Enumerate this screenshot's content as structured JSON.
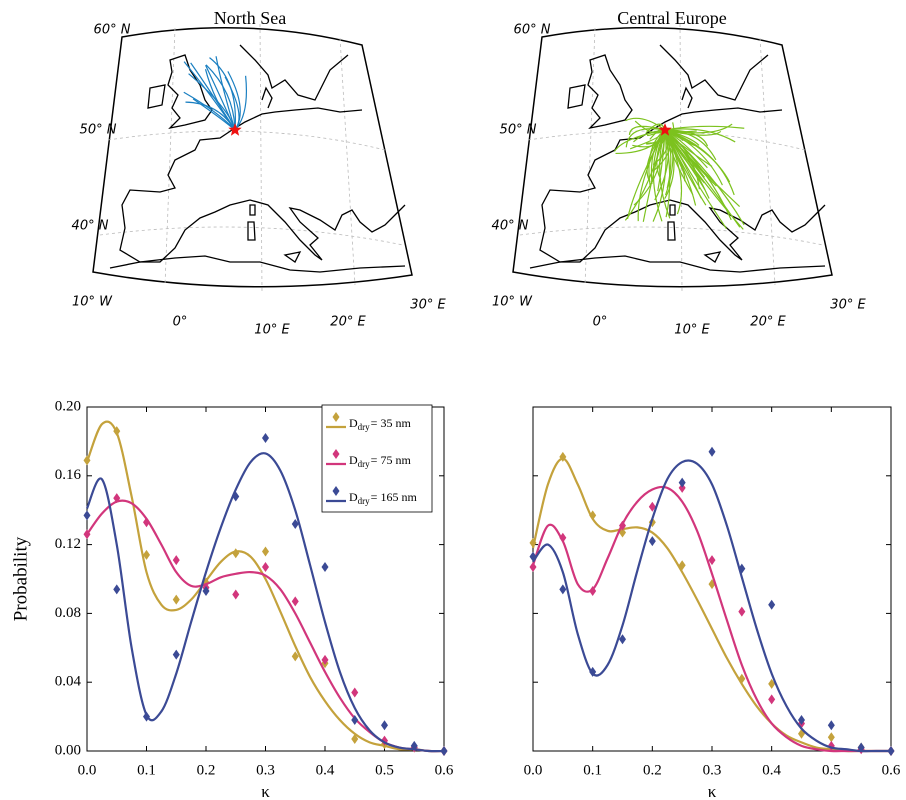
{
  "maps": [
    {
      "title": "North Sea",
      "lat_labels": [
        "60° N",
        "50° N",
        "40° N"
      ],
      "lon_labels": [
        "10° W",
        "0°",
        "10° E",
        "20° E",
        "30° E"
      ]
    },
    {
      "title": "Central Europe",
      "lat_labels": [
        "60° N",
        "50° N",
        "40° N"
      ],
      "lon_labels": [
        "10° W",
        "0°",
        "10° E",
        "20° E",
        "30° E"
      ]
    }
  ],
  "chart_data": [
    {
      "type": "line",
      "xlabel": "κ",
      "ylabel": "Probability",
      "xlim": [
        0,
        0.6
      ],
      "ylim": [
        0,
        0.2
      ],
      "xticks": [
        {
          "value": 0,
          "label": "0.0"
        },
        0.1,
        0.2,
        0.3,
        0.4,
        0.5,
        0.6
      ],
      "yticks": [
        {
          "value": 0,
          "label": "0.00"
        },
        {
          "value": 0.04,
          "label": "0.04"
        },
        {
          "value": 0.08,
          "label": "0.08"
        },
        {
          "value": 0.12,
          "label": "0.12"
        },
        {
          "value": 0.16,
          "label": "0.16"
        },
        {
          "value": 0.2,
          "label": "0.20"
        }
      ],
      "legend": "upper right",
      "x": [
        0,
        0.05,
        0.1,
        0.15,
        0.2,
        0.25,
        0.3,
        0.35,
        0.4,
        0.45,
        0.5,
        0.55,
        0.6
      ],
      "fit_x": [
        0,
        0.025,
        0.05,
        0.075,
        0.1,
        0.125,
        0.15,
        0.175,
        0.2,
        0.225,
        0.25,
        0.275,
        0.3,
        0.325,
        0.35,
        0.375,
        0.4,
        0.425,
        0.45,
        0.475,
        0.5,
        0.525,
        0.55,
        0.575,
        0.6
      ],
      "series": [
        {
          "name": {
            "main": "D",
            "sub": "dry",
            "tail": "= 35 nm"
          },
          "color": "#c4a23c",
          "values": [
            0.169,
            0.186,
            0.114,
            0.088,
            0.098,
            0.115,
            0.116,
            0.055,
            0.051,
            0.007,
            0.004,
            0.002,
            0
          ],
          "fit": [
            0.168,
            0.19,
            0.185,
            0.148,
            0.104,
            0.085,
            0.082,
            0.088,
            0.099,
            0.11,
            0.116,
            0.113,
            0.1,
            0.081,
            0.061,
            0.043,
            0.029,
            0.018,
            0.01,
            0.005,
            0.003,
            0.001,
            0.001,
            0,
            0
          ]
        },
        {
          "name": {
            "main": "D",
            "sub": "dry",
            "tail": "= 75 nm"
          },
          "color": "#d2367c",
          "values": [
            0.126,
            0.147,
            0.133,
            0.111,
            0.095,
            0.091,
            0.107,
            0.087,
            0.053,
            0.034,
            0.006,
            0.002,
            0
          ],
          "fit": [
            0.126,
            0.138,
            0.145,
            0.144,
            0.135,
            0.12,
            0.104,
            0.096,
            0.097,
            0.101,
            0.103,
            0.104,
            0.102,
            0.094,
            0.08,
            0.063,
            0.046,
            0.031,
            0.019,
            0.011,
            0.005,
            0.002,
            0.001,
            0,
            0
          ]
        },
        {
          "name": {
            "main": "D",
            "sub": "dry",
            "tail": "= 165 nm"
          },
          "color": "#3b4a95",
          "values": [
            0.137,
            0.094,
            0.02,
            0.056,
            0.093,
            0.148,
            0.182,
            0.132,
            0.107,
            0.018,
            0.015,
            0.003,
            0
          ],
          "fit": [
            0.141,
            0.158,
            0.12,
            0.06,
            0.021,
            0.023,
            0.045,
            0.075,
            0.104,
            0.13,
            0.152,
            0.168,
            0.173,
            0.163,
            0.14,
            0.108,
            0.075,
            0.046,
            0.025,
            0.012,
            0.005,
            0.002,
            0.001,
            0,
            0
          ]
        }
      ]
    },
    {
      "type": "line",
      "xlabel": "κ",
      "xlim": [
        0,
        0.6
      ],
      "ylim": [
        0,
        0.2
      ],
      "xticks": [
        {
          "value": 0,
          "label": "0.0"
        },
        0.1,
        0.2,
        0.3,
        0.4,
        0.5,
        0.6
      ],
      "yticks": [
        0,
        0.04,
        0.08,
        0.12,
        0.16,
        0.2
      ],
      "ytick_labels": false,
      "x": [
        0,
        0.05,
        0.1,
        0.15,
        0.2,
        0.25,
        0.3,
        0.35,
        0.4,
        0.45,
        0.5,
        0.55,
        0.6
      ],
      "fit_x": [
        0,
        0.025,
        0.05,
        0.075,
        0.1,
        0.125,
        0.15,
        0.175,
        0.2,
        0.225,
        0.25,
        0.275,
        0.3,
        0.325,
        0.35,
        0.375,
        0.4,
        0.425,
        0.45,
        0.475,
        0.5,
        0.525,
        0.55,
        0.575,
        0.6
      ],
      "series": [
        {
          "color": "#c4a23c",
          "values": [
            0.121,
            0.171,
            0.137,
            0.127,
            0.133,
            0.108,
            0.097,
            0.042,
            0.039,
            0.01,
            0.008,
            0.002,
            0
          ],
          "fit": [
            0.118,
            0.155,
            0.17,
            0.155,
            0.135,
            0.128,
            0.129,
            0.13,
            0.127,
            0.118,
            0.104,
            0.088,
            0.071,
            0.054,
            0.039,
            0.026,
            0.016,
            0.009,
            0.005,
            0.002,
            0.001,
            0,
            0,
            0,
            0
          ]
        },
        {
          "color": "#d2367c",
          "values": [
            0.107,
            0.124,
            0.093,
            0.131,
            0.142,
            0.153,
            0.111,
            0.081,
            0.03,
            0.016,
            0.003,
            0.001,
            0
          ],
          "fit": [
            0.108,
            0.131,
            0.122,
            0.097,
            0.094,
            0.112,
            0.132,
            0.145,
            0.152,
            0.153,
            0.145,
            0.128,
            0.103,
            0.076,
            0.05,
            0.03,
            0.016,
            0.008,
            0.003,
            0.001,
            0,
            0,
            0,
            0,
            0
          ]
        },
        {
          "color": "#3b4a95",
          "values": [
            0.113,
            0.094,
            0.046,
            0.065,
            0.122,
            0.156,
            0.174,
            0.106,
            0.085,
            0.018,
            0.015,
            0.002,
            0
          ],
          "fit": [
            0.11,
            0.12,
            0.104,
            0.068,
            0.045,
            0.05,
            0.073,
            0.105,
            0.135,
            0.158,
            0.168,
            0.167,
            0.155,
            0.131,
            0.101,
            0.071,
            0.045,
            0.026,
            0.013,
            0.006,
            0.002,
            0.001,
            0,
            0,
            0
          ]
        }
      ]
    }
  ]
}
